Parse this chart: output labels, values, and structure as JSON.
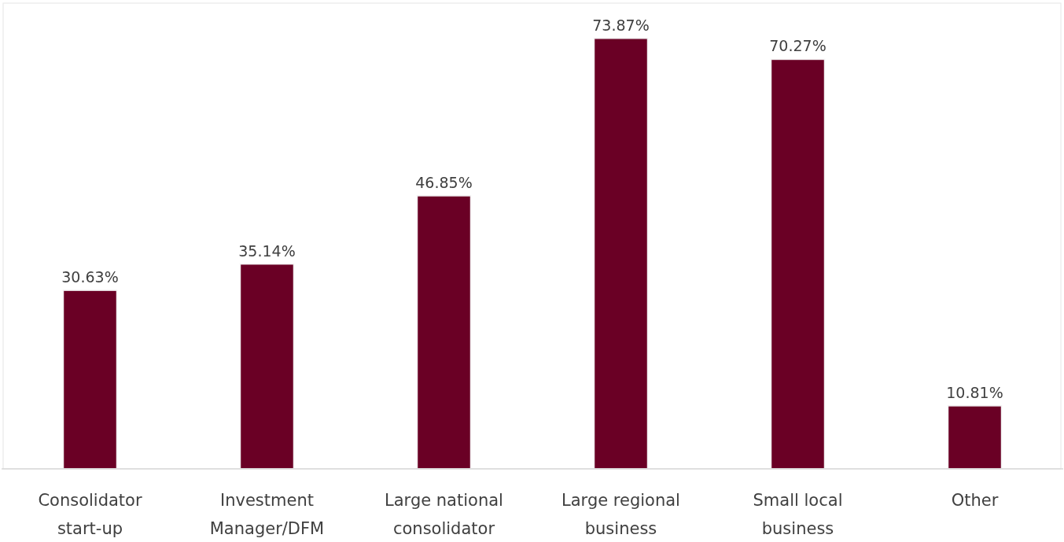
{
  "chart_data": {
    "type": "bar",
    "categories": [
      "Consolidator start-up",
      "Investment Manager/DFM",
      "Large national consolidator",
      "Large regional business",
      "Small local business",
      "Other"
    ],
    "values": [
      30.63,
      35.14,
      46.85,
      73.87,
      70.27,
      10.81
    ],
    "value_labels": [
      "30.63%",
      "35.14%",
      "46.85%",
      "73.87%",
      "70.27%",
      "10.81%"
    ],
    "color": "#6a0025"
  }
}
